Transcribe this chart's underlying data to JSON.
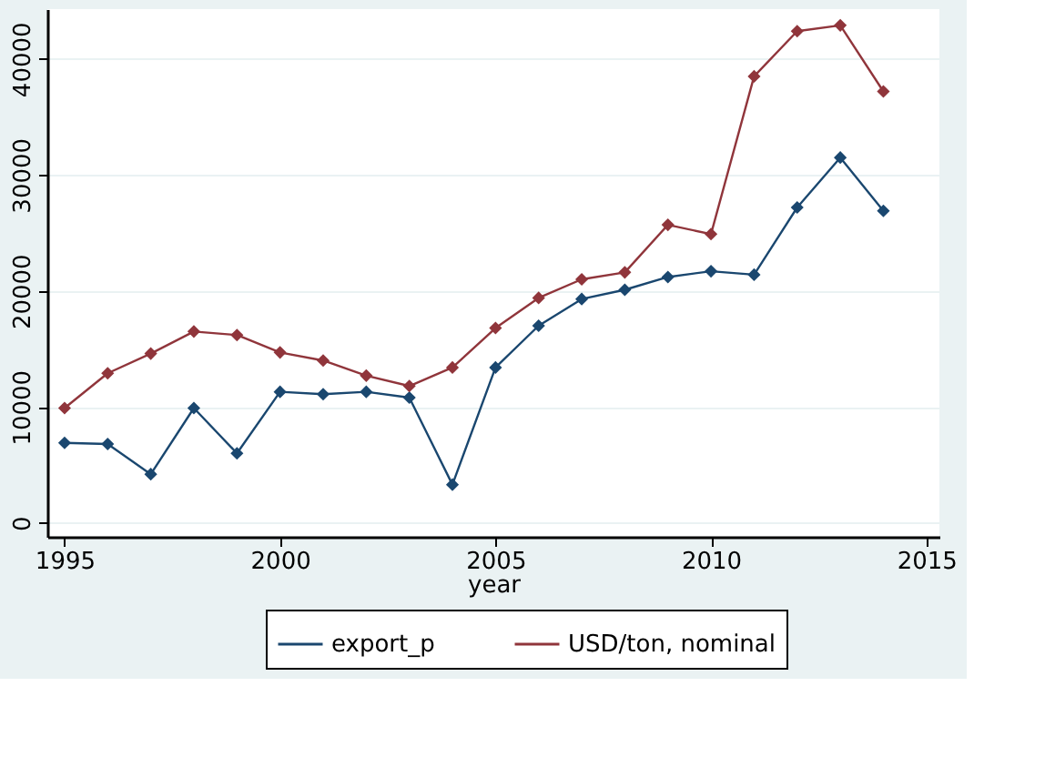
{
  "chart_data": {
    "type": "line",
    "xlabel": "year",
    "x": [
      1995,
      1996,
      1997,
      1998,
      1999,
      2000,
      2001,
      2002,
      2003,
      2004,
      2005,
      2006,
      2007,
      2008,
      2009,
      2010,
      2011,
      2012,
      2013,
      2014
    ],
    "series": [
      {
        "name": "export_p",
        "color": "#1a476f",
        "values": [
          6900,
          6800,
          4200,
          9900,
          6000,
          11300,
          11100,
          11300,
          10800,
          3300,
          13400,
          17000,
          19300,
          20100,
          21200,
          21700,
          21400,
          27200,
          31500,
          26900
        ]
      },
      {
        "name": "USD/ton, nominal",
        "color": "#90353b",
        "values": [
          9900,
          12900,
          14600,
          16500,
          16200,
          14700,
          14000,
          12700,
          11800,
          13400,
          16800,
          19400,
          21000,
          21600,
          25700,
          24900,
          38500,
          42400,
          42900,
          37200
        ]
      }
    ],
    "xlim": [
      1994.6,
      2015.3
    ],
    "xticks": [
      1995,
      2000,
      2005,
      2010,
      2015
    ],
    "ylim": [
      -1200,
      44300
    ],
    "yticks": [
      0,
      10000,
      20000,
      30000,
      40000
    ],
    "grid": "y",
    "legend": "bottom",
    "marker": "diamond",
    "line_style": "solid"
  }
}
